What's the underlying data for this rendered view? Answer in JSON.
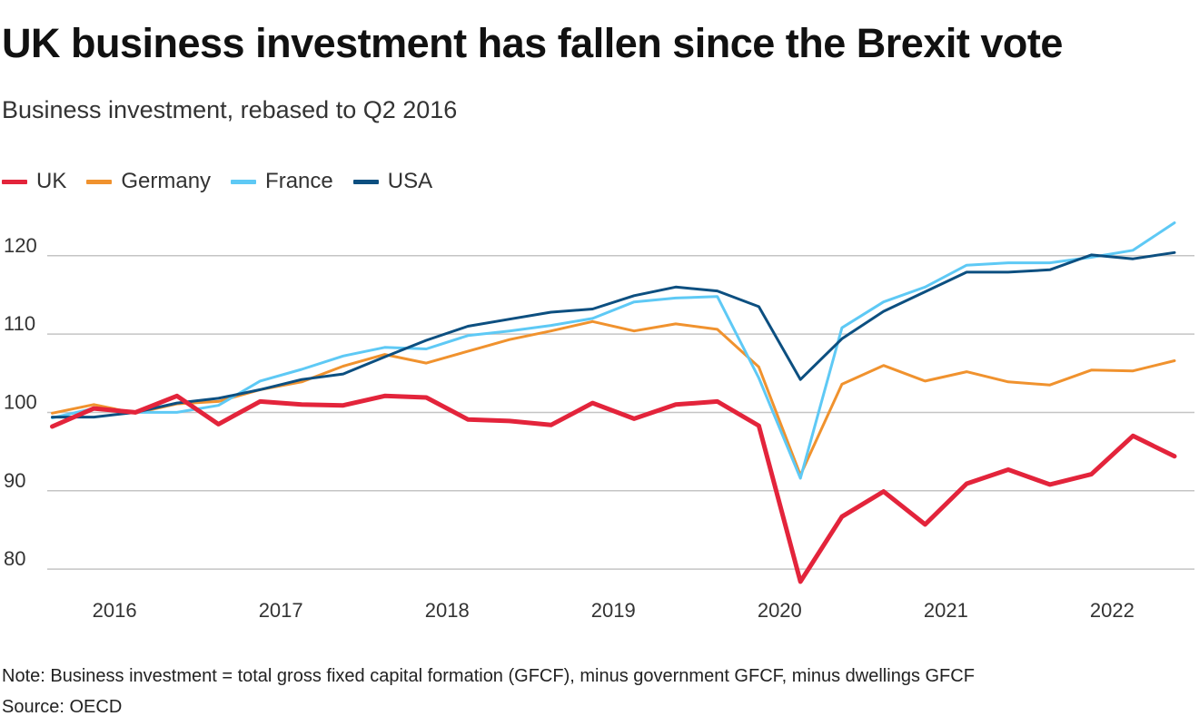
{
  "chart_data": {
    "type": "line",
    "title": "UK business investment has fallen since the Brexit vote",
    "subtitle": "Business investment, rebased to Q2 2016",
    "x": [
      2015.75,
      2016.0,
      2016.25,
      2016.5,
      2016.75,
      2017.0,
      2017.25,
      2017.5,
      2017.75,
      2018.0,
      2018.25,
      2018.5,
      2018.75,
      2019.0,
      2019.25,
      2019.5,
      2019.75,
      2020.0,
      2020.25,
      2020.5,
      2020.75,
      2021.0,
      2021.25,
      2021.5,
      2021.75,
      2022.0,
      2022.25,
      2022.5
    ],
    "x_ticks": [
      2016,
      2017,
      2018,
      2019,
      2020,
      2021,
      2022
    ],
    "y_ticks": [
      80,
      90,
      100,
      110,
      120
    ],
    "ylim": [
      77,
      126
    ],
    "xlim": [
      2015.72,
      2022.62
    ],
    "grid": "horizontal",
    "legend_position": "top-left",
    "series": [
      {
        "name": "UK",
        "color": "#e3243b",
        "values": [
          98.2,
          100.5,
          100.0,
          102.1,
          98.5,
          101.4,
          101.0,
          100.9,
          102.1,
          101.9,
          99.1,
          98.9,
          98.4,
          101.2,
          99.2,
          101.0,
          101.4,
          98.3,
          78.4,
          86.7,
          89.9,
          85.7,
          90.9,
          92.7,
          90.8,
          92.1,
          97.0,
          94.4
        ]
      },
      {
        "name": "Germany",
        "color": "#f0922e",
        "values": [
          99.9,
          101.0,
          99.9,
          101.1,
          101.4,
          102.9,
          103.9,
          105.9,
          107.4,
          106.3,
          107.8,
          109.3,
          110.4,
          111.6,
          110.4,
          111.3,
          110.6,
          105.8,
          92.0,
          103.6,
          106.0,
          104.0,
          105.2,
          103.9,
          103.5,
          105.4,
          105.3,
          106.6
        ]
      },
      {
        "name": "France",
        "color": "#5ec9f5",
        "values": [
          99.3,
          100.5,
          100.0,
          100.0,
          100.9,
          104.0,
          105.5,
          107.2,
          108.3,
          108.1,
          109.8,
          110.4,
          111.1,
          112.0,
          114.1,
          114.6,
          114.8,
          104.4,
          91.6,
          110.8,
          114.1,
          116.0,
          118.8,
          119.1,
          119.1,
          119.8,
          120.7,
          124.2
        ]
      },
      {
        "name": "USA",
        "color": "#0c4f80",
        "values": [
          99.4,
          99.4,
          100.0,
          101.2,
          101.8,
          102.9,
          104.2,
          104.9,
          107.1,
          109.2,
          111.0,
          111.9,
          112.8,
          113.2,
          114.9,
          116.0,
          115.5,
          113.5,
          104.2,
          109.4,
          112.9,
          115.4,
          117.9,
          117.9,
          118.2,
          120.1,
          119.6,
          120.4
        ]
      }
    ]
  },
  "footer": {
    "note": "Note: Business investment = total gross fixed capital formation (GFCF), minus government GFCF, minus dwellings GFCF",
    "source": "Source: OECD"
  }
}
